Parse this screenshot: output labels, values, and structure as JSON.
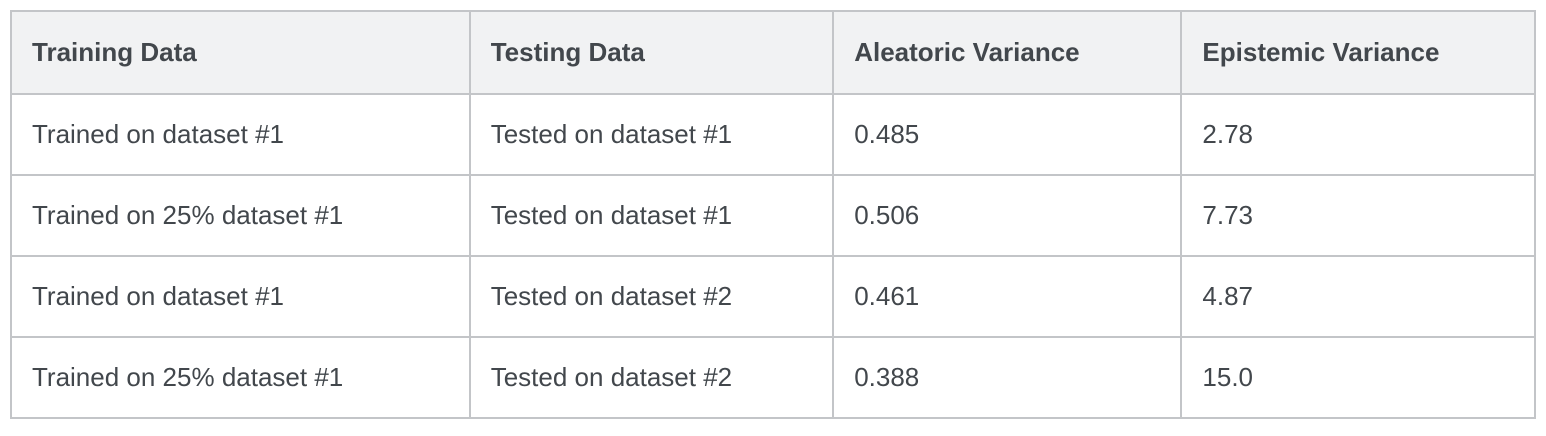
{
  "table": {
    "columns": [
      {
        "label": "Training Data"
      },
      {
        "label": "Testing Data"
      },
      {
        "label": "Aleatoric Variance"
      },
      {
        "label": "Epistemic Variance"
      }
    ],
    "rows": [
      [
        "Trained on dataset #1",
        "Tested on dataset #1",
        "0.485",
        "2.78"
      ],
      [
        "Trained on 25% dataset #1",
        "Tested on dataset #1",
        "0.506",
        "7.73"
      ],
      [
        "Trained on dataset #1",
        "Tested on dataset #2",
        "0.461",
        "4.87"
      ],
      [
        "Trained on 25% dataset #1",
        "Tested on dataset #2",
        "0.388",
        "15.0"
      ]
    ]
  },
  "chart_data": {
    "type": "table",
    "columns": [
      "Training Data",
      "Testing Data",
      "Aleatoric Variance",
      "Epistemic Variance"
    ],
    "rows": [
      [
        "Trained on dataset #1",
        "Tested on dataset #1",
        0.485,
        2.78
      ],
      [
        "Trained on 25% dataset #1",
        "Tested on dataset #1",
        0.506,
        7.73
      ],
      [
        "Trained on dataset #1",
        "Tested on dataset #2",
        0.461,
        4.87
      ],
      [
        "Trained on 25% dataset #1",
        "Tested on dataset #2",
        0.388,
        15.0
      ]
    ]
  },
  "colors": {
    "header_background": "#f1f2f3",
    "cell_background": "#ffffff",
    "border": "#c3c5c8",
    "text": "#42474c"
  }
}
